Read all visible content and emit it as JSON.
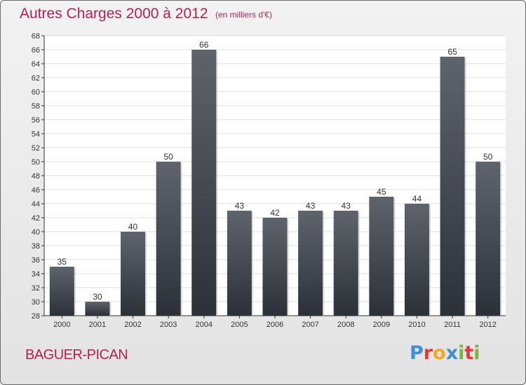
{
  "header": {
    "title": "Autres Charges 2000 à 2012",
    "subtitle": "(en milliers d'€)"
  },
  "footer": {
    "town": "BAGUER-PICAN",
    "logo": {
      "letters": [
        "P",
        "r",
        "o",
        "x",
        "i",
        "t",
        "i"
      ],
      "colors": [
        "#3a8fd6",
        "#e53935",
        "#f4a820",
        "#3a8fd6",
        "#7cb342",
        "#e53935",
        "#7cb342"
      ]
    }
  },
  "chart_data": {
    "type": "bar",
    "title": "Autres Charges 2000 à 2012",
    "subtitle": "(en milliers d'€)",
    "categories": [
      "2000",
      "2001",
      "2002",
      "2003",
      "2004",
      "2005",
      "2006",
      "2007",
      "2008",
      "2009",
      "2010",
      "2011",
      "2012"
    ],
    "values": [
      35,
      30,
      40,
      50,
      66,
      43,
      42,
      43,
      43,
      45,
      44,
      65,
      50
    ],
    "ylim": [
      28,
      68
    ],
    "ytick_step": 2,
    "grid": "horizontal",
    "bar_color_top": "#5e646b",
    "bar_color_bottom": "#2b3137",
    "plot_background": "#ffffff"
  }
}
